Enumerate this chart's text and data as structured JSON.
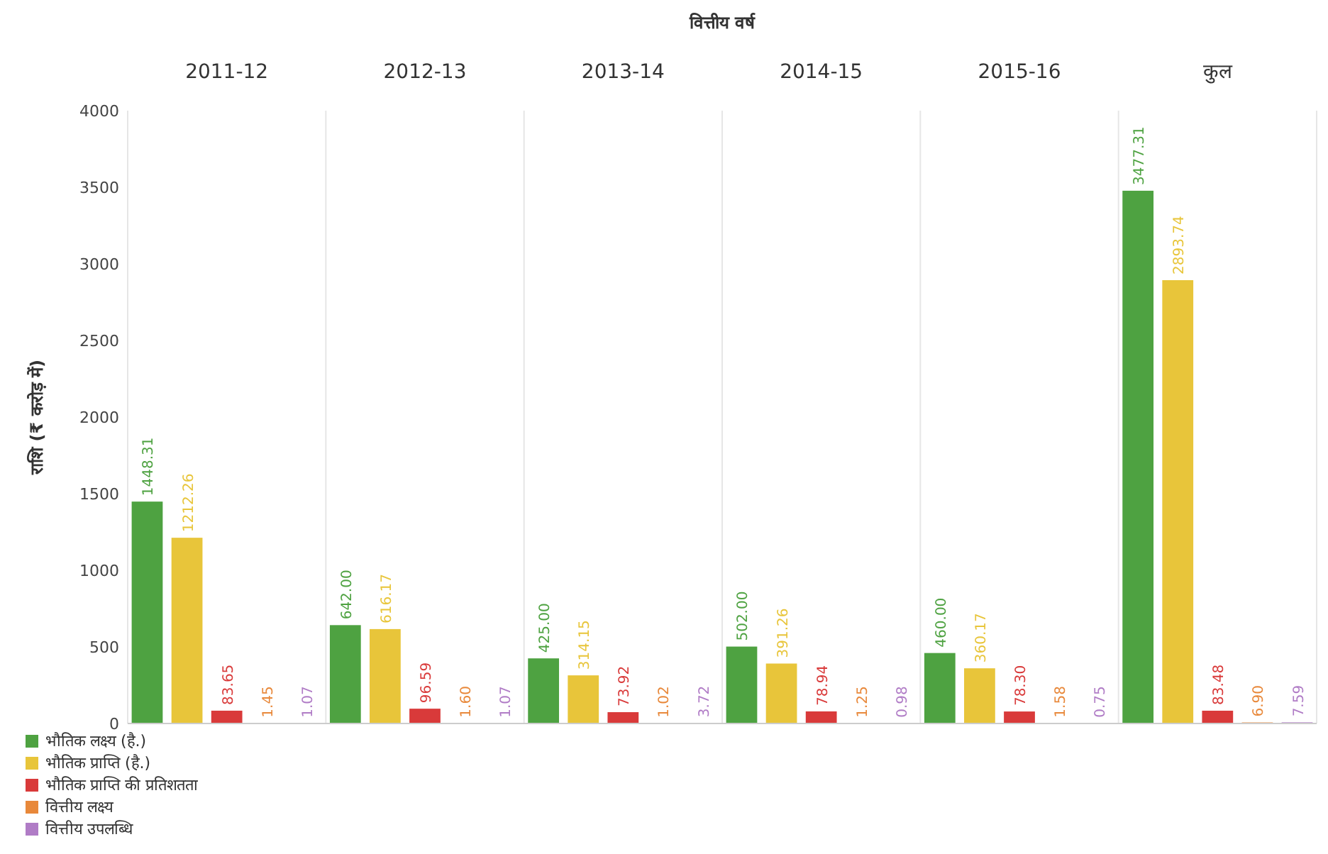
{
  "chart_data": {
    "type": "bar",
    "title": "वित्तीय वर्ष",
    "ylabel": "राशि (₹ करोड़ में)",
    "categories": [
      "2011-12",
      "2012-13",
      "2013-14",
      "2014-15",
      "2015-16",
      "कुल"
    ],
    "series": [
      {
        "name": "भौतिक लक्ष्य (है.)",
        "color": "#4ea241",
        "values": [
          1448.31,
          642.0,
          425.0,
          502.0,
          460.0,
          3477.31
        ],
        "value_labels": [
          "1448.31",
          "642.00",
          "425.00",
          "502.00",
          "460.00",
          "3477.31"
        ]
      },
      {
        "name": "भौतिक प्राप्ति (है.)",
        "color": "#e8c53a",
        "values": [
          1212.26,
          616.17,
          314.15,
          391.26,
          360.17,
          2893.74
        ],
        "value_labels": [
          "1212.26",
          "616.17",
          "314.15",
          "391.26",
          "360.17",
          "2893.74"
        ]
      },
      {
        "name": "भौतिक प्राप्ति की प्रतिशतता",
        "color": "#d93a3a",
        "values": [
          83.65,
          96.59,
          73.92,
          78.94,
          78.3,
          83.48
        ],
        "value_labels": [
          "83.65",
          "96.59",
          "73.92",
          "78.94",
          "78.30",
          "83.48"
        ]
      },
      {
        "name": "वित्तीय लक्ष्य",
        "color": "#e8883a",
        "values": [
          1.45,
          1.6,
          1.02,
          1.25,
          1.58,
          6.9
        ],
        "value_labels": [
          "1.45",
          "1.60",
          "1.02",
          "1.25",
          "1.58",
          "6.90"
        ]
      },
      {
        "name": "वित्तीय उपलब्धि",
        "color": "#b07cc6",
        "values": [
          1.07,
          1.07,
          3.72,
          0.98,
          0.75,
          7.59
        ],
        "value_labels": [
          "1.07",
          "1.07",
          "3.72",
          "0.98",
          "0.75",
          "7.59"
        ]
      }
    ],
    "ylim": [
      0,
      4000
    ],
    "yticks": [
      0,
      500,
      1000,
      1500,
      2000,
      2500,
      3000,
      3500,
      4000
    ],
    "grid": false,
    "legend": "bottom left"
  }
}
